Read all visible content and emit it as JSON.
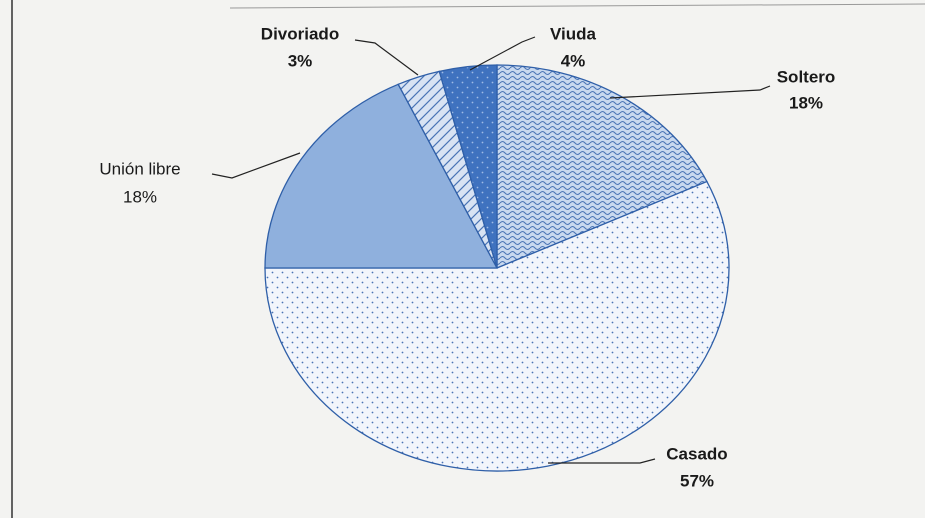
{
  "chart_data": {
    "type": "pie",
    "categories": [
      "Soltero",
      "Casado",
      "Unión libre",
      "Divoriado",
      "Viuda"
    ],
    "values": [
      18,
      57,
      18,
      3,
      4
    ],
    "value_labels": [
      "18%",
      "57%",
      "18%",
      "3%",
      "4%"
    ],
    "colors": [
      "#c9d9ef",
      "#f2f5fb",
      "#8fb0dd",
      "#d8e3f3",
      "#3f72bf"
    ],
    "patterns": [
      "waves",
      "dots",
      "none",
      "lines",
      "dots"
    ]
  }
}
